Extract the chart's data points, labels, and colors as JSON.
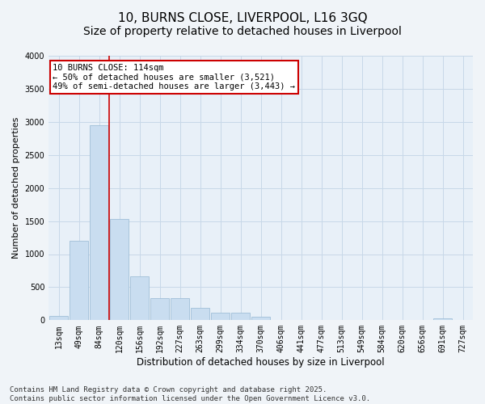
{
  "title": "10, BURNS CLOSE, LIVERPOOL, L16 3GQ",
  "subtitle": "Size of property relative to detached houses in Liverpool",
  "xlabel": "Distribution of detached houses by size in Liverpool",
  "ylabel": "Number of detached properties",
  "categories": [
    "13sqm",
    "49sqm",
    "84sqm",
    "120sqm",
    "156sqm",
    "192sqm",
    "227sqm",
    "263sqm",
    "299sqm",
    "334sqm",
    "370sqm",
    "406sqm",
    "441sqm",
    "477sqm",
    "513sqm",
    "549sqm",
    "584sqm",
    "620sqm",
    "656sqm",
    "691sqm",
    "727sqm"
  ],
  "values": [
    70,
    1200,
    2950,
    1530,
    670,
    330,
    330,
    190,
    115,
    110,
    50,
    0,
    0,
    0,
    0,
    0,
    0,
    0,
    0,
    25,
    0
  ],
  "bar_color": "#c9ddf0",
  "bar_edge_color": "#a0bfd8",
  "red_line_index": 2.5,
  "annotation_text": "10 BURNS CLOSE: 114sqm\n← 50% of detached houses are smaller (3,521)\n49% of semi-detached houses are larger (3,443) →",
  "annotation_box_color": "#ffffff",
  "annotation_box_edge_color": "#cc0000",
  "red_line_color": "#cc0000",
  "ylim": [
    0,
    4000
  ],
  "yticks": [
    0,
    500,
    1000,
    1500,
    2000,
    2500,
    3000,
    3500,
    4000
  ],
  "grid_color": "#c8d8e8",
  "bg_color": "#e8f0f8",
  "fig_bg_color": "#f0f4f8",
  "footnote": "Contains HM Land Registry data © Crown copyright and database right 2025.\nContains public sector information licensed under the Open Government Licence v3.0.",
  "title_fontsize": 11,
  "xlabel_fontsize": 8.5,
  "ylabel_fontsize": 8,
  "tick_fontsize": 7,
  "annot_fontsize": 7.5,
  "footnote_fontsize": 6.5
}
